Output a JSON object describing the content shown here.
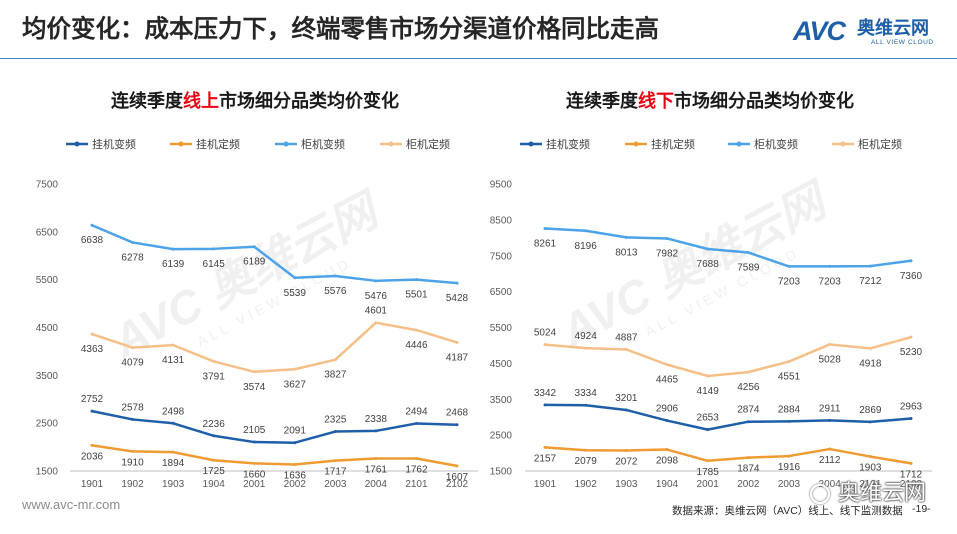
{
  "header": {
    "title": "均价变化：成本压力下，终端零售市场分渠道价格同比走高"
  },
  "logo": {
    "mark": "AVC",
    "name": "奥维云网",
    "tagline": "ALL VIEW CLOUD",
    "color": "#1F5FA8"
  },
  "chart_data": [
    {
      "type": "line",
      "title_parts": [
        {
          "text": "连续季度",
          "color": "#1A1A1A"
        },
        {
          "text": "线上",
          "color": "#E60012"
        },
        {
          "text": "市场细分品类均价变化",
          "color": "#1A1A1A"
        }
      ],
      "categories": [
        "1901",
        "1902",
        "1903",
        "1904",
        "2001",
        "2002",
        "2003",
        "2004",
        "2101",
        "2102"
      ],
      "yticks": [
        1500,
        2500,
        3500,
        4500,
        5500,
        6500,
        7500
      ],
      "ylim": [
        1500,
        7500
      ],
      "legend": "top",
      "grid": false,
      "series": [
        {
          "name": "挂机变频",
          "color": "#1F5FA8",
          "values": [
            2752,
            2578,
            2498,
            2236,
            2105,
            2091,
            2325,
            2338,
            2494,
            2468
          ]
        },
        {
          "name": "挂机定频",
          "color": "#EE9B33",
          "values": [
            2036,
            1910,
            1894,
            1725,
            1660,
            1636,
            1717,
            1761,
            1762,
            1607
          ]
        },
        {
          "name": "柜机变频",
          "color": "#4DA3E8",
          "values": [
            6638,
            6278,
            6139,
            6145,
            6189,
            5539,
            5576,
            5476,
            5501,
            5428
          ]
        },
        {
          "name": "柜机定频",
          "color": "#F5BF88",
          "values": [
            4363,
            4079,
            4131,
            3791,
            3574,
            3627,
            3827,
            4601,
            4446,
            4187
          ]
        }
      ]
    },
    {
      "type": "line",
      "title_parts": [
        {
          "text": "连续季度",
          "color": "#1A1A1A"
        },
        {
          "text": "线下",
          "color": "#E60012"
        },
        {
          "text": "市场细分品类均价变化",
          "color": "#1A1A1A"
        }
      ],
      "categories": [
        "1901",
        "1902",
        "1903",
        "1904",
        "2001",
        "2002",
        "2003",
        "2004",
        "2101",
        "2102"
      ],
      "yticks": [
        1500,
        2500,
        3500,
        4500,
        5500,
        6500,
        7500,
        8500,
        9500
      ],
      "ylim": [
        1500,
        9500
      ],
      "legend": "top",
      "grid": false,
      "series": [
        {
          "name": "挂机变频",
          "color": "#1F5FA8",
          "values": [
            3342,
            3334,
            3201,
            2906,
            2653,
            2874,
            2884,
            2911,
            2869,
            2963
          ]
        },
        {
          "name": "挂机定频",
          "color": "#EE9B33",
          "values": [
            2157,
            2079,
            2072,
            2098,
            1785,
            1874,
            1916,
            2112,
            1903,
            1712
          ]
        },
        {
          "name": "柜机变频",
          "color": "#4DA3E8",
          "values": [
            8261,
            8196,
            8013,
            7982,
            7688,
            7589,
            7203,
            7203,
            7212,
            7360
          ]
        },
        {
          "name": "柜机定频",
          "color": "#F5BF88",
          "values": [
            5024,
            4924,
            4887,
            4465,
            4149,
            4256,
            4551,
            5028,
            4918,
            5230
          ]
        }
      ]
    }
  ],
  "footer": {
    "website": "www.avc-mr.com",
    "source": "数据来源：奥维云网（AVC）线上、线下监测数据",
    "page": "-19-"
  },
  "watermark": {
    "text": "奥维云网",
    "bg_mark": "AVC 奥维云网",
    "bg_tagline": "ALL VIEW CLOUD"
  }
}
